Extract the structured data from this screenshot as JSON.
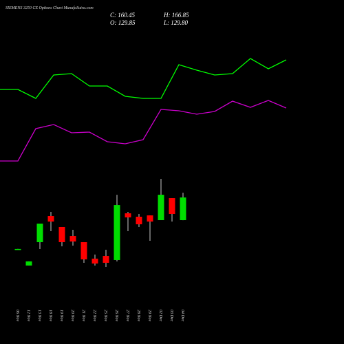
{
  "chart_data": [
    {
      "type": "line",
      "series": [
        {
          "color": "#00ff00",
          "values": [
            170,
            170,
            157,
            191,
            193,
            175,
            175,
            160,
            157,
            157,
            206,
            198,
            191,
            193,
            215,
            200,
            213
          ]
        },
        {
          "color": "#cc00cc",
          "values": [
            66,
            66,
            113,
            119,
            107,
            108,
            94,
            91,
            97,
            141,
            139,
            134,
            138,
            153,
            144,
            154,
            143
          ]
        }
      ]
    },
    {
      "type": "candlestick",
      "title": "SIEMENS 3250 CE Options Chart MunafaSutra.com",
      "ohlc_labels": [
        "C: 160.45",
        "H: 166.85",
        "O: 129.85",
        "L: 129.80"
      ],
      "categories": [
        "06 Nov",
        "12 Nov",
        "13 Nov",
        "18 Nov",
        "19 Nov",
        "20 Nov",
        "21 Nov",
        "22 Nov",
        "25 Nov",
        "26 Nov",
        "27 Nov",
        "28 Nov",
        "29 Nov",
        "02 Dec",
        "03 Dec",
        "04 Dec"
      ],
      "open": [
        91,
        68.7,
        100.2,
        135.4,
        120.6,
        108.5,
        100.2,
        78,
        81.6,
        76.1,
        139.1,
        134.5,
        136.3,
        129.85,
        159.5,
        129.85
      ],
      "high": [
        91.2,
        74.3,
        125.2,
        141,
        120.6,
        116.9,
        100.2,
        83.5,
        90,
        164.1,
        141,
        138.2,
        136.3,
        185.5,
        159.5,
        166.85
      ],
      "low": [
        90.8,
        68.7,
        90.9,
        115,
        94.6,
        95.6,
        72.4,
        68.7,
        66.8,
        74.2,
        115,
        120.6,
        102,
        129.85,
        128,
        129.8
      ],
      "close": [
        91,
        74.3,
        125.2,
        128,
        100.2,
        101.1,
        77,
        71.4,
        72.4,
        150.2,
        133.6,
        124.3,
        128,
        164.1,
        138.2,
        160.45
      ],
      "up_color": "#00dd00",
      "down_color": "#ff0000"
    }
  ]
}
